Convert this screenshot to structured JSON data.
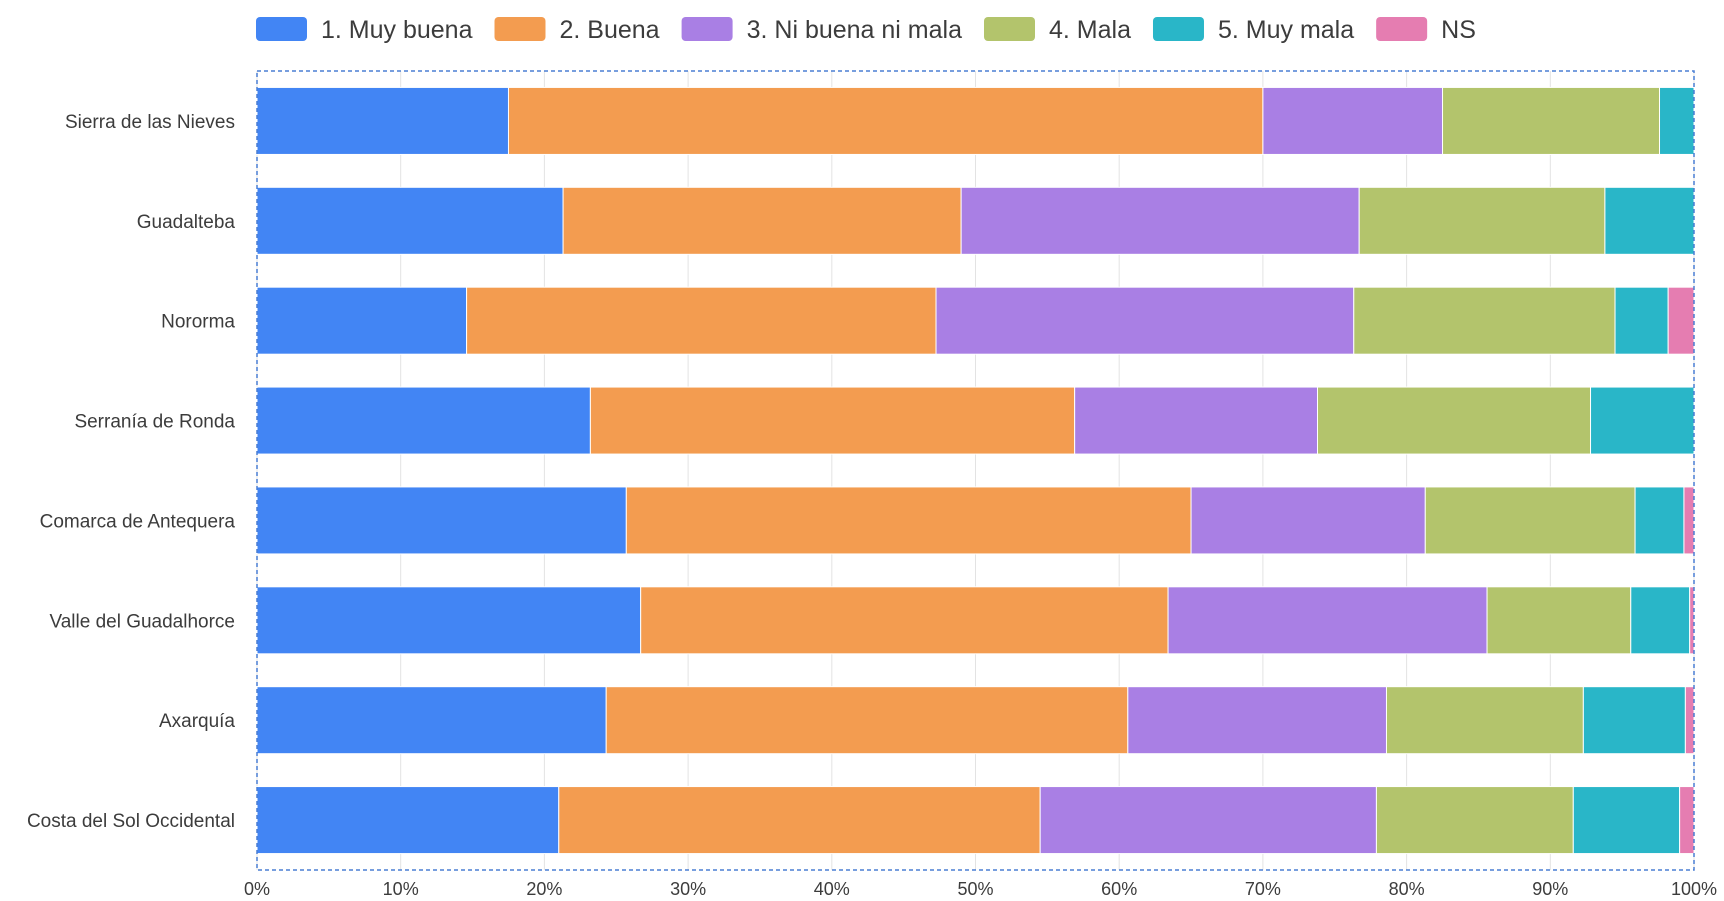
{
  "chart_data": {
    "type": "bar",
    "orientation": "horizontal",
    "stacked": "percent",
    "title": "",
    "xlabel": "",
    "ylabel": "",
    "xlim": [
      0,
      100
    ],
    "x_ticks": [
      "0%",
      "10%",
      "20%",
      "30%",
      "40%",
      "50%",
      "60%",
      "70%",
      "80%",
      "90%",
      "100%"
    ],
    "grid": true,
    "legend_position": "top",
    "categories": [
      "Sierra de las Nieves",
      "Guadalteba",
      "Nororma",
      "Serranía de Ronda",
      "Comarca de Antequera",
      "Valle del Guadalhorce",
      "Axarquía",
      "Costa del Sol Occidental"
    ],
    "series": [
      {
        "name": "1. Muy buena",
        "color": "#4285f4",
        "values": [
          17.5,
          21.3,
          14.6,
          23.2,
          25.7,
          26.7,
          24.3,
          21.0
        ]
      },
      {
        "name": "2. Buena",
        "color": "#f39c50",
        "values": [
          52.5,
          27.7,
          32.7,
          33.7,
          39.3,
          36.7,
          36.3,
          33.5
        ]
      },
      {
        "name": "3. Ni buena ni mala",
        "color": "#a97fe4",
        "values": [
          12.5,
          27.7,
          29.1,
          16.9,
          16.3,
          22.2,
          18.0,
          23.4
        ]
      },
      {
        "name": "4. Mala",
        "color": "#b3c46c",
        "values": [
          15.1,
          17.1,
          18.2,
          19.0,
          14.6,
          10.0,
          13.7,
          13.7
        ]
      },
      {
        "name": "5. Muy mala",
        "color": "#29b6c8",
        "values": [
          2.4,
          6.2,
          3.7,
          7.2,
          3.4,
          4.1,
          7.1,
          7.4
        ]
      },
      {
        "name": "NS",
        "color": "#e57db1",
        "values": [
          0,
          0,
          1.8,
          0,
          0.7,
          0.3,
          0.6,
          1.0
        ]
      }
    ]
  }
}
